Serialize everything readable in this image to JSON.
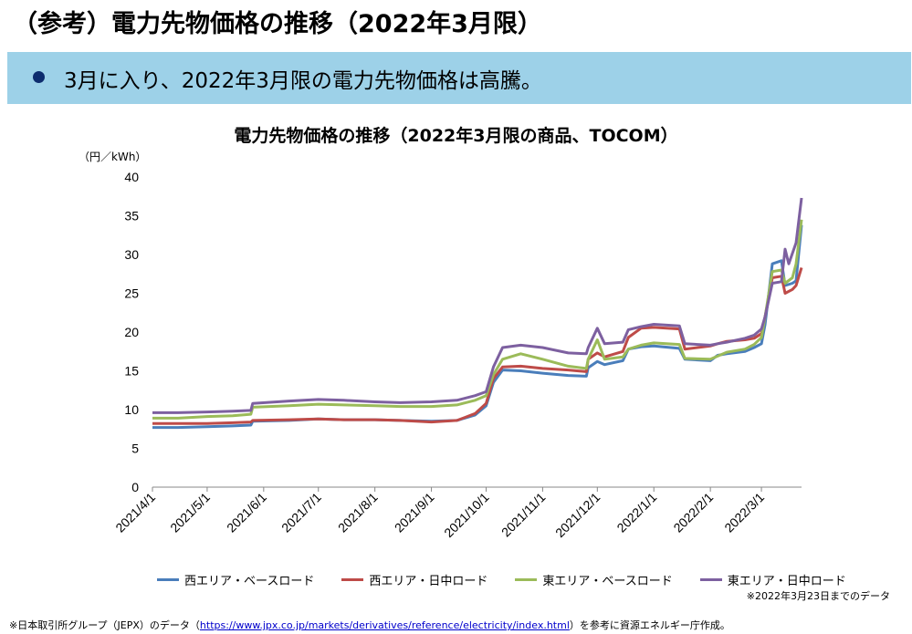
{
  "page_title": "（参考）電力先物価格の推移（2022年3月限）",
  "banner_text": "3月に入り、2022年3月限の電力先物価格は高騰。",
  "chart_data": {
    "type": "line",
    "title": "電力先物価格の推移（2022年3月限の商品、TOCOM）",
    "unit_label": "（円／kWh）",
    "ylim": [
      0,
      40
    ],
    "yticks": [
      0,
      5,
      10,
      15,
      20,
      25,
      30,
      35,
      40
    ],
    "xlim": [
      "2021-04-01",
      "2022-03-23"
    ],
    "xticks": [
      {
        "date": "2021-04-01",
        "label": "2021/4/1"
      },
      {
        "date": "2021-05-01",
        "label": "2021/5/1"
      },
      {
        "date": "2021-06-01",
        "label": "2021/6/1"
      },
      {
        "date": "2021-07-01",
        "label": "2021/7/1"
      },
      {
        "date": "2021-08-01",
        "label": "2021/8/1"
      },
      {
        "date": "2021-09-01",
        "label": "2021/9/1"
      },
      {
        "date": "2021-10-01",
        "label": "2021/10/1"
      },
      {
        "date": "2021-11-01",
        "label": "2021/11/1"
      },
      {
        "date": "2021-12-01",
        "label": "2021/12/1"
      },
      {
        "date": "2022-01-01",
        "label": "2022/1/1"
      },
      {
        "date": "2022-02-01",
        "label": "2022/2/1"
      },
      {
        "date": "2022-03-01",
        "label": "2022/3/1"
      }
    ],
    "grid": false,
    "legend_position": "bottom",
    "series": [
      {
        "name": "西エリア・ベースロード",
        "color": "#4a7ebb",
        "points": [
          [
            "2021-04-01",
            7.7
          ],
          [
            "2021-04-15",
            7.7
          ],
          [
            "2021-05-01",
            7.8
          ],
          [
            "2021-05-15",
            7.9
          ],
          [
            "2021-05-25",
            8.0
          ],
          [
            "2021-05-26",
            8.5
          ],
          [
            "2021-06-15",
            8.6
          ],
          [
            "2021-07-01",
            8.8
          ],
          [
            "2021-07-15",
            8.7
          ],
          [
            "2021-08-01",
            8.7
          ],
          [
            "2021-08-15",
            8.6
          ],
          [
            "2021-09-01",
            8.5
          ],
          [
            "2021-09-15",
            8.6
          ],
          [
            "2021-09-25",
            9.3
          ],
          [
            "2021-10-01",
            10.5
          ],
          [
            "2021-10-05",
            13.5
          ],
          [
            "2021-10-10",
            15.1
          ],
          [
            "2021-10-20",
            15.0
          ],
          [
            "2021-11-01",
            14.7
          ],
          [
            "2021-11-15",
            14.4
          ],
          [
            "2021-11-25",
            14.3
          ],
          [
            "2021-11-26",
            15.4
          ],
          [
            "2021-12-01",
            16.2
          ],
          [
            "2021-12-05",
            15.8
          ],
          [
            "2021-12-15",
            16.3
          ],
          [
            "2021-12-18",
            17.8
          ],
          [
            "2021-12-25",
            18.1
          ],
          [
            "2022-01-01",
            18.2
          ],
          [
            "2022-01-15",
            17.9
          ],
          [
            "2022-01-18",
            16.5
          ],
          [
            "2022-02-01",
            16.3
          ],
          [
            "2022-02-05",
            17.0
          ],
          [
            "2022-02-10",
            17.2
          ],
          [
            "2022-02-20",
            17.5
          ],
          [
            "2022-02-25",
            18.0
          ],
          [
            "2022-03-01",
            18.5
          ],
          [
            "2022-03-03",
            21.0
          ],
          [
            "2022-03-07",
            28.8
          ],
          [
            "2022-03-12",
            29.2
          ],
          [
            "2022-03-14",
            26.0
          ],
          [
            "2022-03-18",
            26.3
          ],
          [
            "2022-03-20",
            26.6
          ],
          [
            "2022-03-23",
            33.8
          ]
        ]
      },
      {
        "name": "西エリア・日中ロード",
        "color": "#be4b48",
        "points": [
          [
            "2021-04-01",
            8.2
          ],
          [
            "2021-04-15",
            8.2
          ],
          [
            "2021-05-01",
            8.2
          ],
          [
            "2021-05-15",
            8.3
          ],
          [
            "2021-05-25",
            8.4
          ],
          [
            "2021-05-26",
            8.6
          ],
          [
            "2021-06-15",
            8.7
          ],
          [
            "2021-07-01",
            8.8
          ],
          [
            "2021-07-15",
            8.7
          ],
          [
            "2021-08-01",
            8.7
          ],
          [
            "2021-08-15",
            8.6
          ],
          [
            "2021-09-01",
            8.4
          ],
          [
            "2021-09-15",
            8.6
          ],
          [
            "2021-09-25",
            9.5
          ],
          [
            "2021-10-01",
            10.8
          ],
          [
            "2021-10-05",
            14.0
          ],
          [
            "2021-10-10",
            15.5
          ],
          [
            "2021-10-20",
            15.6
          ],
          [
            "2021-11-01",
            15.3
          ],
          [
            "2021-11-15",
            15.1
          ],
          [
            "2021-11-25",
            14.9
          ],
          [
            "2021-11-26",
            16.5
          ],
          [
            "2021-12-01",
            17.3
          ],
          [
            "2021-12-05",
            16.8
          ],
          [
            "2021-12-15",
            17.5
          ],
          [
            "2021-12-18",
            19.3
          ],
          [
            "2021-12-25",
            20.5
          ],
          [
            "2022-01-01",
            20.6
          ],
          [
            "2022-01-15",
            20.4
          ],
          [
            "2022-01-18",
            17.8
          ],
          [
            "2022-02-01",
            18.2
          ],
          [
            "2022-02-05",
            18.5
          ],
          [
            "2022-02-10",
            18.8
          ],
          [
            "2022-02-20",
            19.0
          ],
          [
            "2022-02-25",
            19.2
          ],
          [
            "2022-03-01",
            19.8
          ],
          [
            "2022-03-03",
            22.0
          ],
          [
            "2022-03-07",
            27.0
          ],
          [
            "2022-03-12",
            27.2
          ],
          [
            "2022-03-14",
            25.0
          ],
          [
            "2022-03-18",
            25.5
          ],
          [
            "2022-03-20",
            26.0
          ],
          [
            "2022-03-23",
            28.3
          ]
        ]
      },
      {
        "name": "東エリア・ベースロード",
        "color": "#9bbb59",
        "points": [
          [
            "2021-04-01",
            8.9
          ],
          [
            "2021-04-15",
            8.9
          ],
          [
            "2021-05-01",
            9.1
          ],
          [
            "2021-05-15",
            9.2
          ],
          [
            "2021-05-25",
            9.4
          ],
          [
            "2021-05-26",
            10.3
          ],
          [
            "2021-06-15",
            10.5
          ],
          [
            "2021-07-01",
            10.7
          ],
          [
            "2021-07-15",
            10.6
          ],
          [
            "2021-08-01",
            10.5
          ],
          [
            "2021-08-15",
            10.4
          ],
          [
            "2021-09-01",
            10.4
          ],
          [
            "2021-09-15",
            10.6
          ],
          [
            "2021-09-25",
            11.2
          ],
          [
            "2021-10-01",
            11.8
          ],
          [
            "2021-10-05",
            14.5
          ],
          [
            "2021-10-10",
            16.5
          ],
          [
            "2021-10-20",
            17.2
          ],
          [
            "2021-11-01",
            16.5
          ],
          [
            "2021-11-15",
            15.6
          ],
          [
            "2021-11-25",
            15.3
          ],
          [
            "2021-11-26",
            16.5
          ],
          [
            "2021-12-01",
            19.0
          ],
          [
            "2021-12-05",
            16.5
          ],
          [
            "2021-12-15",
            16.8
          ],
          [
            "2021-12-18",
            17.8
          ],
          [
            "2021-12-25",
            18.3
          ],
          [
            "2022-01-01",
            18.6
          ],
          [
            "2022-01-15",
            18.4
          ],
          [
            "2022-01-18",
            16.6
          ],
          [
            "2022-02-01",
            16.5
          ],
          [
            "2022-02-05",
            16.9
          ],
          [
            "2022-02-10",
            17.4
          ],
          [
            "2022-02-20",
            17.8
          ],
          [
            "2022-02-25",
            18.4
          ],
          [
            "2022-03-01",
            19.3
          ],
          [
            "2022-03-03",
            22.0
          ],
          [
            "2022-03-07",
            27.8
          ],
          [
            "2022-03-12",
            28.0
          ],
          [
            "2022-03-14",
            26.3
          ],
          [
            "2022-03-18",
            27.0
          ],
          [
            "2022-03-20",
            28.8
          ],
          [
            "2022-03-23",
            34.5
          ]
        ]
      },
      {
        "name": "東エリア・日中ロード",
        "color": "#7d60a0",
        "points": [
          [
            "2021-04-01",
            9.6
          ],
          [
            "2021-04-15",
            9.6
          ],
          [
            "2021-05-01",
            9.7
          ],
          [
            "2021-05-15",
            9.8
          ],
          [
            "2021-05-25",
            9.9
          ],
          [
            "2021-05-26",
            10.8
          ],
          [
            "2021-06-15",
            11.1
          ],
          [
            "2021-07-01",
            11.3
          ],
          [
            "2021-07-15",
            11.2
          ],
          [
            "2021-08-01",
            11.0
          ],
          [
            "2021-08-15",
            10.9
          ],
          [
            "2021-09-01",
            11.0
          ],
          [
            "2021-09-15",
            11.2
          ],
          [
            "2021-09-25",
            11.8
          ],
          [
            "2021-10-01",
            12.3
          ],
          [
            "2021-10-05",
            15.5
          ],
          [
            "2021-10-10",
            18.0
          ],
          [
            "2021-10-20",
            18.3
          ],
          [
            "2021-11-01",
            18.0
          ],
          [
            "2021-11-15",
            17.3
          ],
          [
            "2021-11-25",
            17.2
          ],
          [
            "2021-11-26",
            18.0
          ],
          [
            "2021-12-01",
            20.5
          ],
          [
            "2021-12-05",
            18.5
          ],
          [
            "2021-12-15",
            18.7
          ],
          [
            "2021-12-18",
            20.3
          ],
          [
            "2021-12-25",
            20.7
          ],
          [
            "2022-01-01",
            21.0
          ],
          [
            "2022-01-15",
            20.8
          ],
          [
            "2022-01-18",
            18.5
          ],
          [
            "2022-02-01",
            18.3
          ],
          [
            "2022-02-05",
            18.5
          ],
          [
            "2022-02-10",
            18.7
          ],
          [
            "2022-02-20",
            19.2
          ],
          [
            "2022-02-25",
            19.6
          ],
          [
            "2022-03-01",
            20.4
          ],
          [
            "2022-03-03",
            22.0
          ],
          [
            "2022-03-07",
            26.3
          ],
          [
            "2022-03-12",
            26.5
          ],
          [
            "2022-03-14",
            30.7
          ],
          [
            "2022-03-16",
            28.8
          ],
          [
            "2022-03-20",
            31.5
          ],
          [
            "2022-03-23",
            37.3
          ]
        ]
      }
    ]
  },
  "data_note": "※2022年3月23日までのデータ",
  "source_note": {
    "prefix": "※日本取引所グループ（JEPX）のデータ（",
    "url": "https://www.jpx.co.jp/markets/derivatives/reference/electricity/index.html",
    "suffix": "）を参考に資源エネルギー庁作成。"
  }
}
